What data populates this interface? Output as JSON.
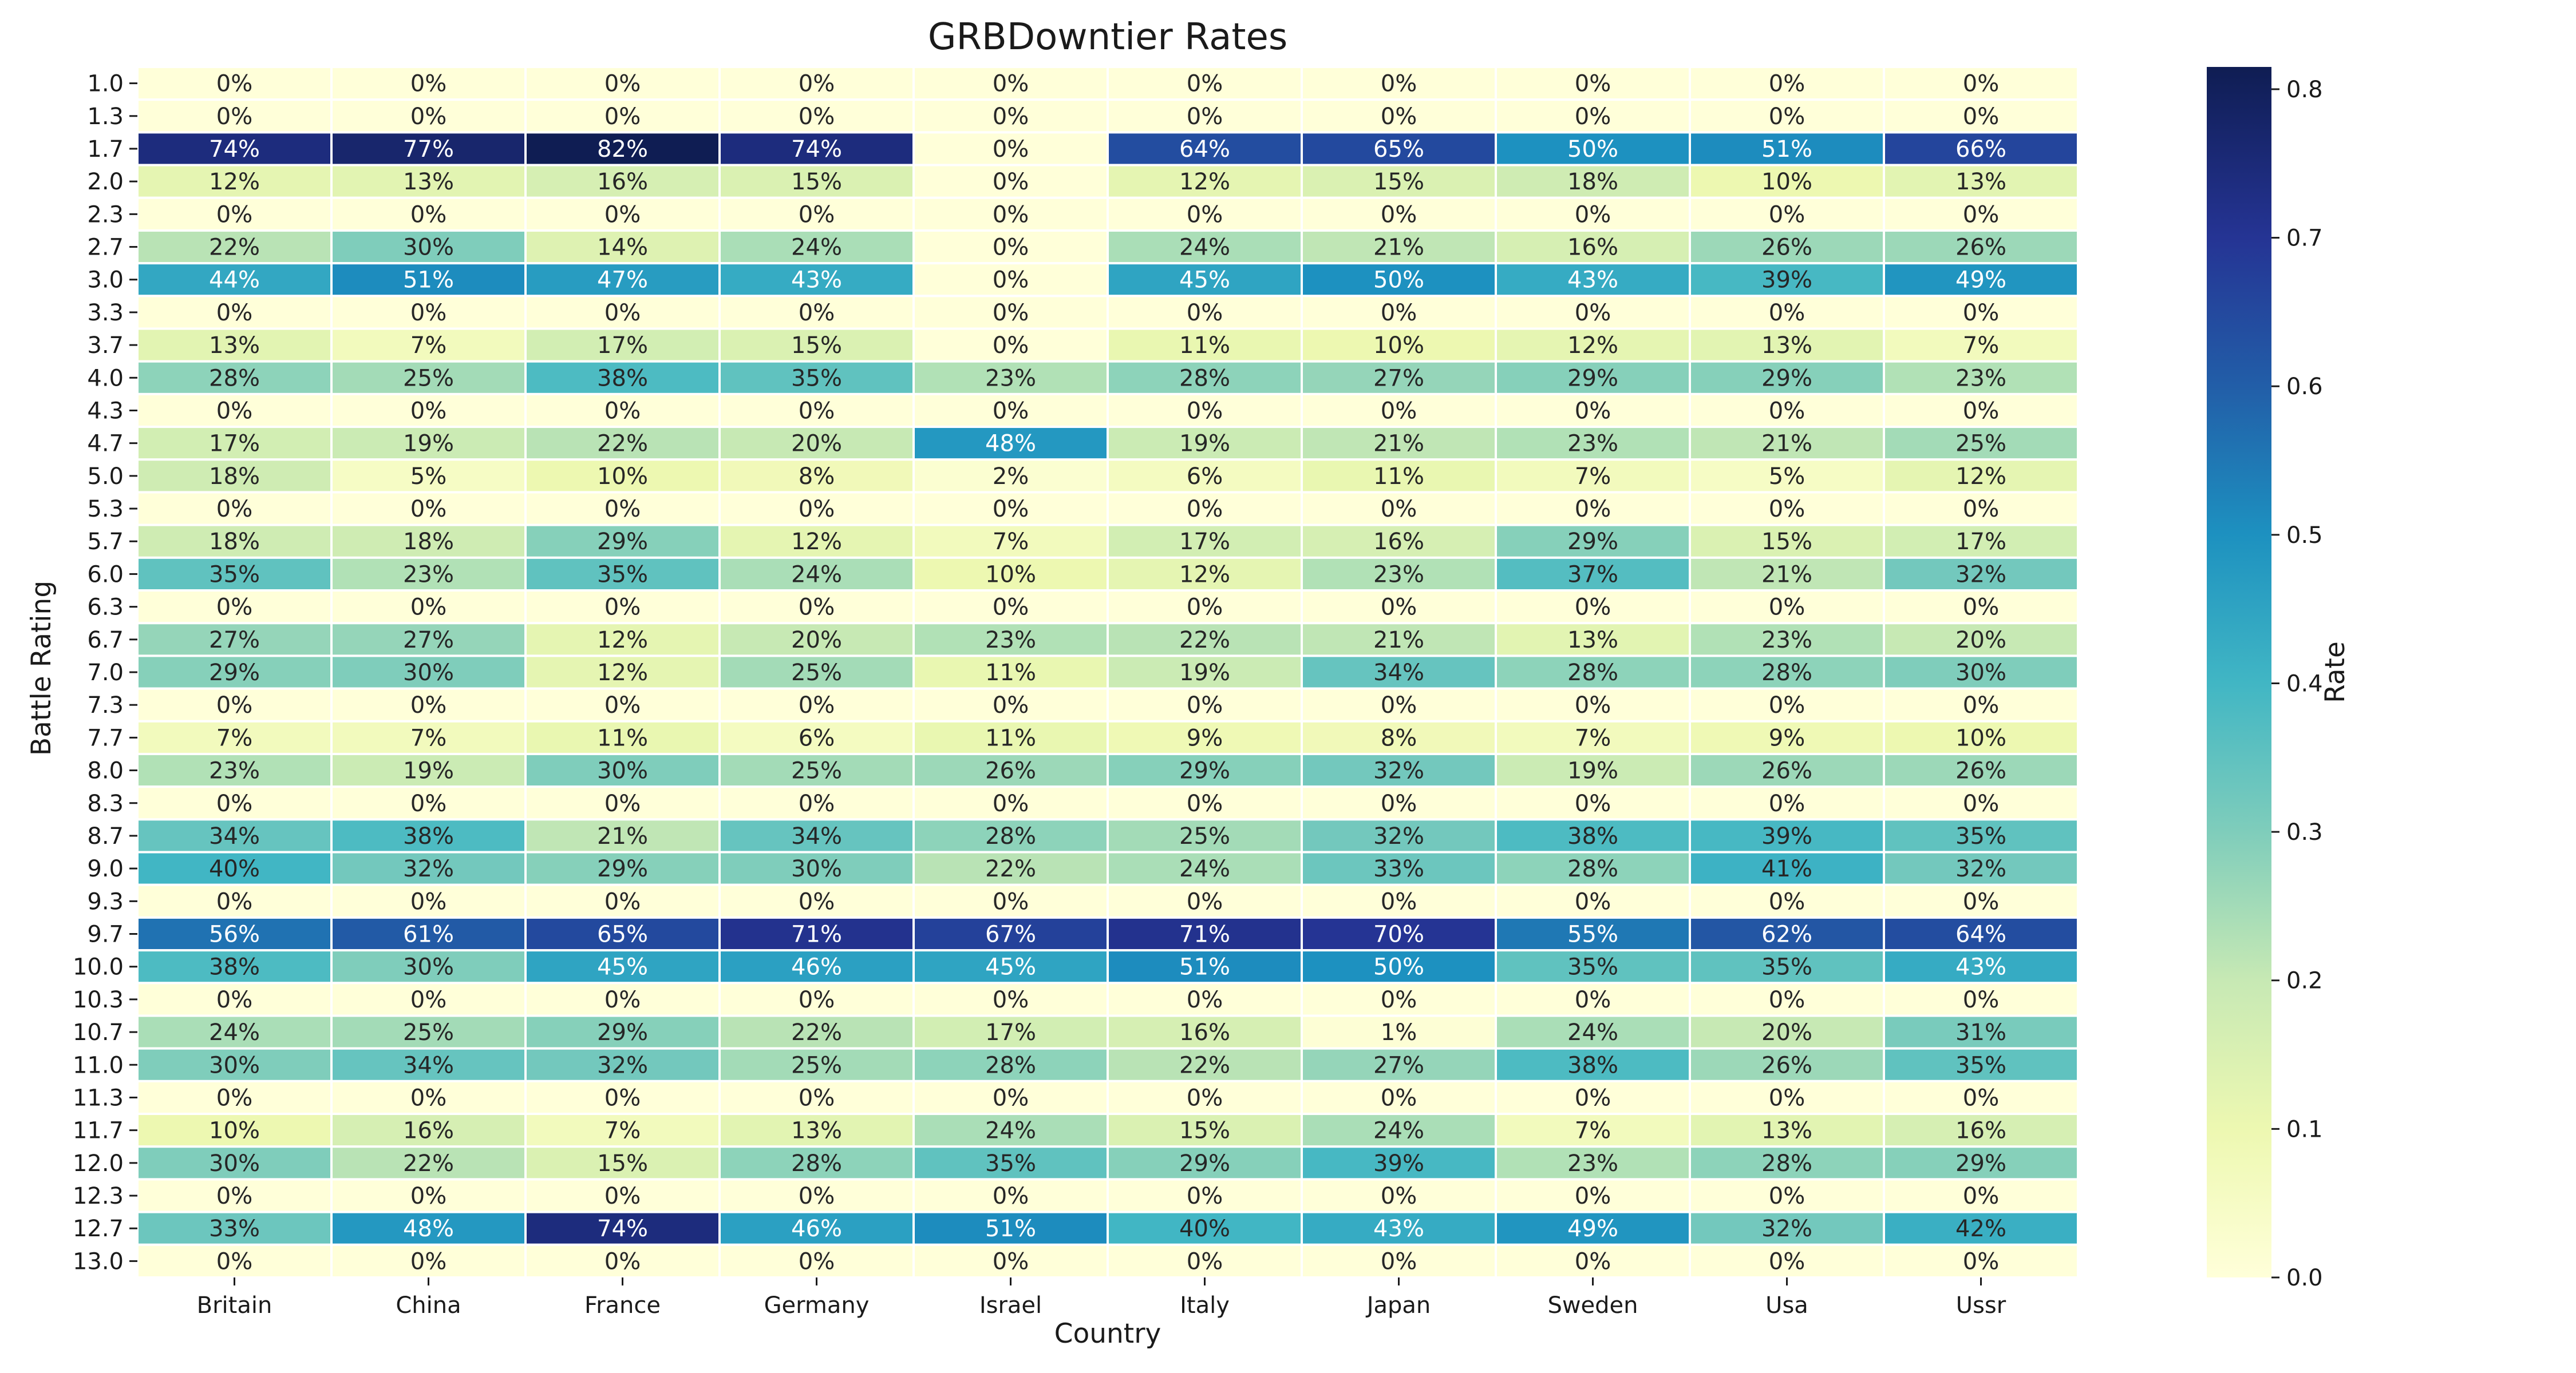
{
  "chart_data": {
    "type": "heatmap",
    "title": "GRBDowntier Rates",
    "xlabel": "Country",
    "ylabel": "Battle Rating",
    "colorbar_label": "Rate",
    "colorbar_ticks": [
      "0.0",
      "0.1",
      "0.2",
      "0.3",
      "0.4",
      "0.5",
      "0.6",
      "0.7",
      "0.8"
    ],
    "value_range": [
      0,
      0.815
    ],
    "colormap": "YlGnBu",
    "cell_label_format": "percent",
    "x": [
      "Britain",
      "China",
      "France",
      "Germany",
      "Israel",
      "Italy",
      "Japan",
      "Sweden",
      "Usa",
      "Ussr"
    ],
    "y": [
      "1.0",
      "1.3",
      "1.7",
      "2.0",
      "2.3",
      "2.7",
      "3.0",
      "3.3",
      "3.7",
      "4.0",
      "4.3",
      "4.7",
      "5.0",
      "5.3",
      "5.7",
      "6.0",
      "6.3",
      "6.7",
      "7.0",
      "7.3",
      "7.7",
      "8.0",
      "8.3",
      "8.7",
      "9.0",
      "9.3",
      "9.7",
      "10.0",
      "10.3",
      "10.7",
      "11.0",
      "11.3",
      "11.7",
      "12.0",
      "12.3",
      "12.7",
      "13.0"
    ],
    "values": [
      [
        0,
        0,
        0,
        0,
        0,
        0,
        0,
        0,
        0,
        0
      ],
      [
        0,
        0,
        0,
        0,
        0,
        0,
        0,
        0,
        0,
        0
      ],
      [
        74,
        77,
        82,
        74,
        0,
        64,
        65,
        50,
        51,
        66
      ],
      [
        12,
        13,
        16,
        15,
        0,
        12,
        15,
        18,
        10,
        13
      ],
      [
        0,
        0,
        0,
        0,
        0,
        0,
        0,
        0,
        0,
        0
      ],
      [
        22,
        30,
        14,
        24,
        0,
        24,
        21,
        16,
        26,
        26
      ],
      [
        44,
        51,
        47,
        43,
        0,
        45,
        50,
        43,
        39,
        49
      ],
      [
        0,
        0,
        0,
        0,
        0,
        0,
        0,
        0,
        0,
        0
      ],
      [
        13,
        7,
        17,
        15,
        0,
        11,
        10,
        12,
        13,
        7
      ],
      [
        28,
        25,
        38,
        35,
        23,
        28,
        27,
        29,
        29,
        23
      ],
      [
        0,
        0,
        0,
        0,
        0,
        0,
        0,
        0,
        0,
        0
      ],
      [
        17,
        19,
        22,
        20,
        48,
        19,
        21,
        23,
        21,
        25
      ],
      [
        18,
        5,
        10,
        8,
        2,
        6,
        11,
        7,
        5,
        12
      ],
      [
        0,
        0,
        0,
        0,
        0,
        0,
        0,
        0,
        0,
        0
      ],
      [
        18,
        18,
        29,
        12,
        7,
        17,
        16,
        29,
        15,
        17
      ],
      [
        35,
        23,
        35,
        24,
        10,
        12,
        23,
        37,
        21,
        32
      ],
      [
        0,
        0,
        0,
        0,
        0,
        0,
        0,
        0,
        0,
        0
      ],
      [
        27,
        27,
        12,
        20,
        23,
        22,
        21,
        13,
        23,
        20
      ],
      [
        29,
        30,
        12,
        25,
        11,
        19,
        34,
        28,
        28,
        30
      ],
      [
        0,
        0,
        0,
        0,
        0,
        0,
        0,
        0,
        0,
        0
      ],
      [
        7,
        7,
        11,
        6,
        11,
        9,
        8,
        7,
        9,
        10
      ],
      [
        23,
        19,
        30,
        25,
        26,
        29,
        32,
        19,
        26,
        26
      ],
      [
        0,
        0,
        0,
        0,
        0,
        0,
        0,
        0,
        0,
        0
      ],
      [
        34,
        38,
        21,
        34,
        28,
        25,
        32,
        38,
        39,
        35
      ],
      [
        40,
        32,
        29,
        30,
        22,
        24,
        33,
        28,
        41,
        32
      ],
      [
        0,
        0,
        0,
        0,
        0,
        0,
        0,
        0,
        0,
        0
      ],
      [
        56,
        61,
        65,
        71,
        67,
        71,
        70,
        55,
        62,
        64
      ],
      [
        38,
        30,
        45,
        46,
        45,
        51,
        50,
        35,
        35,
        43
      ],
      [
        0,
        0,
        0,
        0,
        0,
        0,
        0,
        0,
        0,
        0
      ],
      [
        24,
        25,
        29,
        22,
        17,
        16,
        1,
        24,
        20,
        31
      ],
      [
        30,
        34,
        32,
        25,
        28,
        22,
        27,
        38,
        26,
        35
      ],
      [
        0,
        0,
        0,
        0,
        0,
        0,
        0,
        0,
        0,
        0
      ],
      [
        10,
        16,
        7,
        13,
        24,
        15,
        24,
        7,
        13,
        16
      ],
      [
        30,
        22,
        15,
        28,
        35,
        29,
        39,
        23,
        28,
        29
      ],
      [
        0,
        0,
        0,
        0,
        0,
        0,
        0,
        0,
        0,
        0
      ],
      [
        33,
        48,
        74,
        46,
        51,
        40,
        43,
        49,
        32,
        42
      ],
      [
        0,
        0,
        0,
        0,
        0,
        0,
        0,
        0,
        0,
        0
      ]
    ]
  }
}
